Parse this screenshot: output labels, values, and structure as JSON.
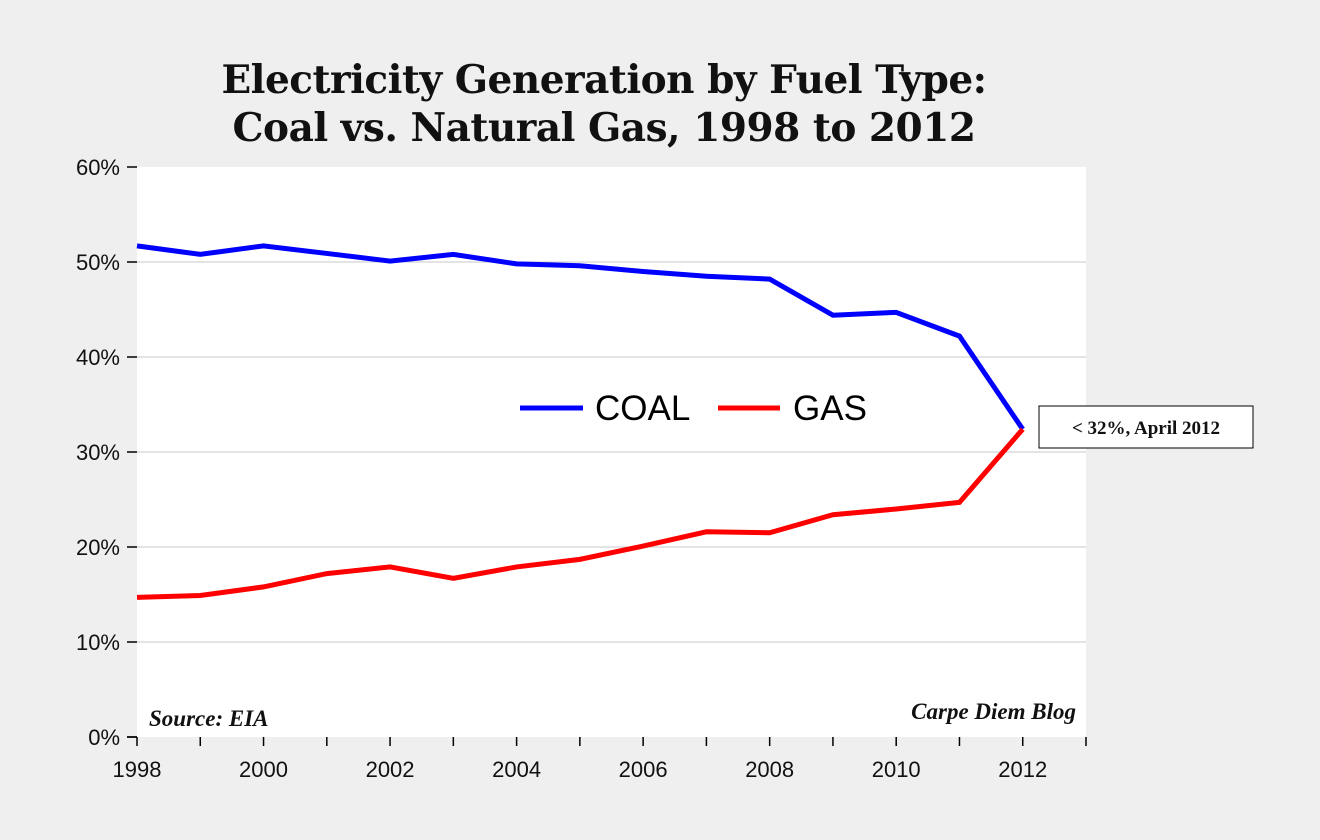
{
  "chart_data": {
    "type": "line",
    "title": [
      "Electricity Generation by Fuel Type:",
      "Coal vs. Natural Gas, 1998 to 2012"
    ],
    "xlabel": "",
    "ylabel": "",
    "x": [
      1998,
      1999,
      2000,
      2001,
      2002,
      2003,
      2004,
      2005,
      2006,
      2007,
      2008,
      2009,
      2010,
      2011,
      2012
    ],
    "xlim": [
      1998,
      2013
    ],
    "x_tick_labels": [
      "1998",
      "2000",
      "2002",
      "2004",
      "2006",
      "2008",
      "2010",
      "2012"
    ],
    "x_tick_label_values": [
      1998,
      2000,
      2002,
      2004,
      2006,
      2008,
      2010,
      2012
    ],
    "ylim": [
      0,
      60
    ],
    "y_ticks": [
      0,
      10,
      20,
      30,
      40,
      50,
      60
    ],
    "y_tick_labels": [
      "0%",
      "10%",
      "20%",
      "30%",
      "40%",
      "50%",
      "60%"
    ],
    "grid": true,
    "legend_position": "center",
    "series": [
      {
        "name": "COAL",
        "color": "#0000ff",
        "values": [
          51.7,
          50.8,
          51.7,
          50.9,
          50.1,
          50.8,
          49.8,
          49.6,
          49.0,
          48.5,
          48.2,
          44.4,
          44.7,
          42.2,
          32.4
        ]
      },
      {
        "name": "GAS",
        "color": "#ff0000",
        "values": [
          14.7,
          14.9,
          15.8,
          17.2,
          17.9,
          16.7,
          17.9,
          18.7,
          20.1,
          21.6,
          21.5,
          23.4,
          24.0,
          24.7,
          32.4
        ]
      }
    ],
    "annotations": {
      "callout": "< 32%, April 2012",
      "source": "Source: EIA",
      "credit": "Carpe Diem Blog"
    }
  }
}
